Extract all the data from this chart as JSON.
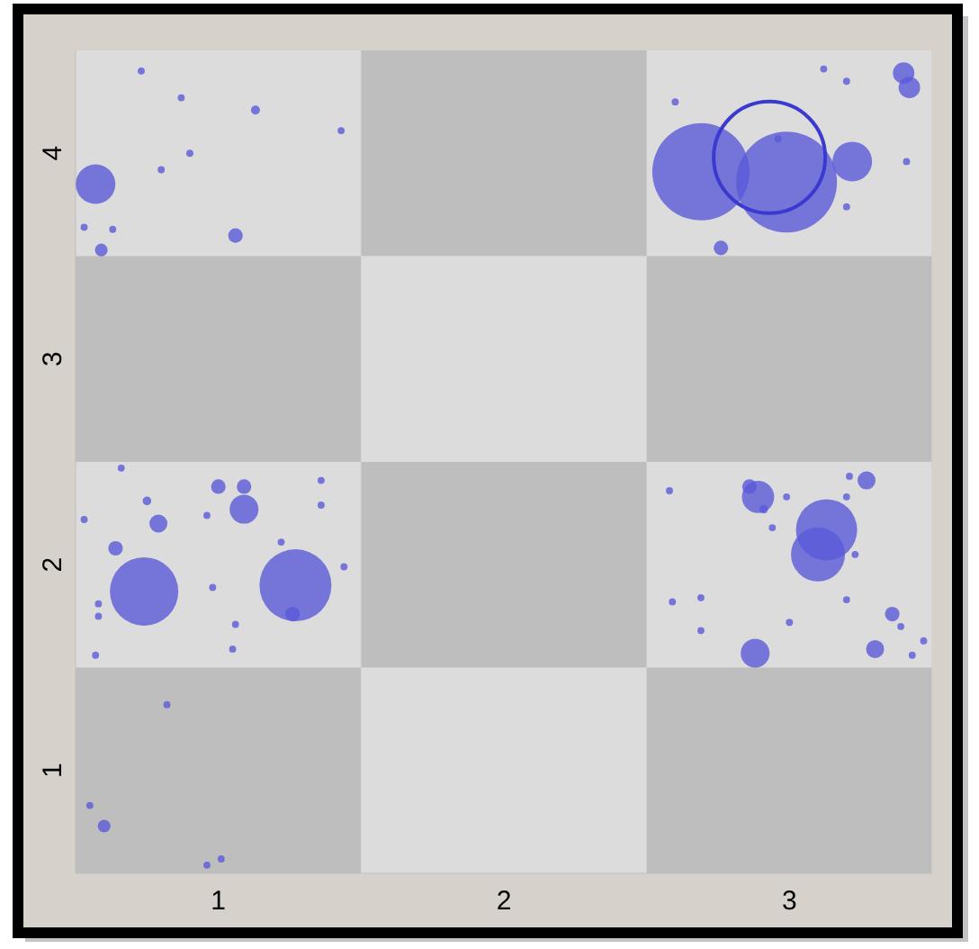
{
  "chart_data": {
    "type": "bubble",
    "xlim": [
      0.5,
      3.5
    ],
    "ylim": [
      0.5,
      4.5
    ],
    "xticks": [
      1,
      2,
      3
    ],
    "yticks": [
      1,
      2,
      3,
      4
    ],
    "series": [
      {
        "color": "#5a5ad8",
        "x": [
          0.73,
          0.87,
          1.13,
          1.43,
          0.9,
          0.8,
          0.57,
          0.53,
          0.63,
          1.06,
          0.59,
          2.69,
          2.99,
          3.22,
          3.4,
          3.42,
          3.12,
          3.2,
          2.6,
          2.96,
          3.41,
          3.2,
          2.76,
          0.66,
          1.0,
          1.09,
          1.09,
          1.36,
          1.36,
          0.75,
          0.53,
          0.79,
          0.64,
          0.96,
          1.22,
          1.44,
          0.74,
          1.27,
          1.26,
          0.58,
          0.98,
          0.58,
          1.06,
          1.05,
          0.57,
          2.58,
          2.86,
          2.89,
          2.99,
          2.91,
          3.27,
          3.21,
          3.2,
          3.13,
          3.1,
          2.94,
          3.23,
          2.59,
          2.69,
          3.2,
          3.0,
          3.36,
          3.39,
          2.69,
          3.47,
          2.88,
          3.3,
          3.43,
          0.82,
          0.55,
          0.6,
          1.01,
          0.96
        ],
        "values": [
          4.4,
          4.27,
          4.21,
          4.11,
          4.0,
          3.92,
          3.85,
          3.64,
          3.63,
          3.6,
          3.53,
          3.91,
          3.86,
          3.96,
          4.39,
          4.32,
          4.41,
          4.35,
          4.25,
          4.07,
          3.96,
          3.74,
          3.54,
          2.47,
          2.38,
          2.38,
          2.27,
          2.41,
          2.29,
          2.31,
          2.22,
          2.2,
          2.08,
          2.24,
          2.11,
          1.99,
          1.87,
          1.9,
          1.76,
          1.81,
          1.89,
          1.75,
          1.71,
          1.59,
          1.56,
          2.36,
          2.38,
          2.33,
          2.33,
          2.27,
          2.41,
          2.43,
          2.33,
          2.17,
          2.05,
          2.18,
          2.05,
          1.82,
          1.84,
          1.83,
          1.72,
          1.76,
          1.7,
          1.68,
          1.63,
          1.57,
          1.59,
          1.56,
          1.32,
          0.83,
          0.73,
          0.57,
          0.54
        ],
        "sizes": [
          0.004,
          0.004,
          0.0065,
          0.004,
          0.004,
          0.004,
          0.126,
          0.004,
          0.004,
          0.017,
          0.013,
          0.759,
          0.816,
          0.126,
          0.037,
          0.037,
          0.004,
          0.004,
          0.004,
          0.004,
          0.004,
          0.004,
          0.017,
          0.004,
          0.017,
          0.017,
          0.067,
          0.004,
          0.004,
          0.006,
          0.004,
          0.026,
          0.017,
          0.004,
          0.004,
          0.004,
          0.376,
          0.416,
          0.017,
          0.004,
          0.004,
          0.004,
          0.004,
          0.004,
          0.004,
          0.004,
          0.017,
          0.084,
          0.004,
          0.006,
          0.026,
          0.004,
          0.004,
          0.301,
          0.234,
          0.004,
          0.004,
          0.004,
          0.004,
          0.004,
          0.004,
          0.017,
          0.004,
          0.004,
          0.004,
          0.067,
          0.026,
          0.004,
          0.004,
          0.004,
          0.013,
          0.004,
          0.004
        ]
      },
      {
        "color": "#3a3ad0",
        "marker": "circle",
        "x": [
          2.93
        ],
        "values": [
          3.98
        ],
        "sizes": [
          1
        ]
      }
    ]
  }
}
